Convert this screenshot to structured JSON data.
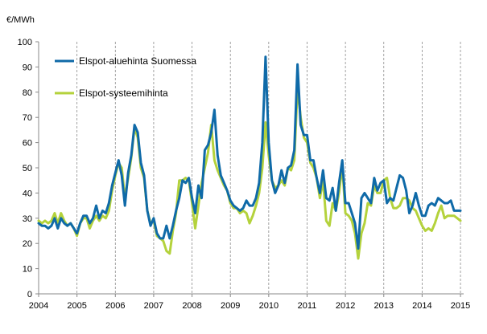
{
  "chart_data": {
    "type": "line",
    "title": "",
    "ylabel": "€/MWh",
    "xlabel": "",
    "ylim": [
      0,
      100
    ],
    "yticks": [
      0,
      10,
      20,
      30,
      40,
      50,
      60,
      70,
      80,
      90,
      100
    ],
    "xlim": [
      2004,
      2015.083
    ],
    "xticks": [
      2004,
      2005,
      2006,
      2007,
      2008,
      2009,
      2010,
      2011,
      2012,
      2013,
      2014,
      2015
    ],
    "xtick_labels": [
      "2004",
      "2005",
      "2006",
      "2007",
      "2008",
      "2009",
      "2010",
      "2011",
      "2012",
      "2013",
      "2014",
      "2015"
    ],
    "grid": "vertical dashed lines at year boundaries",
    "legend_position": "top-left",
    "series": [
      {
        "name": "Elspot-aluehinta Suomessa",
        "color": "#0f6aa8",
        "values": [
          28,
          27,
          27,
          26,
          27,
          30,
          26,
          30,
          28,
          27,
          28,
          26,
          24,
          28,
          31,
          31,
          28,
          30,
          35,
          30,
          33,
          32,
          36,
          43,
          48,
          53,
          47,
          35,
          48,
          55,
          67,
          64,
          52,
          47,
          33,
          27,
          30,
          24,
          22,
          22,
          27,
          22,
          27,
          33,
          38,
          45,
          44,
          46,
          38,
          32,
          43,
          38,
          57,
          59,
          64,
          73,
          55,
          47,
          44,
          41,
          37,
          35,
          34,
          33,
          34,
          37,
          35,
          35,
          38,
          44,
          60,
          94,
          60,
          45,
          40,
          43,
          49,
          44,
          50,
          51,
          57,
          91,
          67,
          63,
          63,
          53,
          53,
          46,
          40,
          49,
          38,
          37,
          42,
          33,
          44,
          53,
          36,
          36,
          32,
          28,
          18,
          38,
          40,
          38,
          36,
          46,
          41,
          44,
          45,
          36,
          38,
          37,
          42,
          47,
          46,
          41,
          32,
          35,
          40,
          35,
          31,
          31,
          35,
          36,
          35,
          38,
          37,
          36,
          36,
          37,
          33,
          33,
          33
        ],
        "values_note": "monthly values, Jan 2004 – Jan 2015"
      },
      {
        "name": "Elspot-systeemihinta",
        "color": "#b4d23c",
        "values": [
          29,
          28,
          29,
          28,
          29,
          32,
          28,
          32,
          29,
          27,
          28,
          26,
          23,
          28,
          30,
          30,
          26,
          29,
          31,
          29,
          31,
          30,
          33,
          41,
          47,
          52,
          50,
          38,
          46,
          54,
          66,
          62,
          50,
          46,
          33,
          28,
          29,
          23,
          22,
          21,
          17,
          16,
          25,
          32,
          45,
          45,
          46,
          45,
          36,
          26,
          35,
          44,
          50,
          56,
          67,
          53,
          49,
          46,
          43,
          41,
          36,
          34,
          34,
          32,
          33,
          32,
          28,
          31,
          35,
          40,
          50,
          68,
          55,
          45,
          42,
          43,
          45,
          43,
          50,
          49,
          53,
          82,
          70,
          62,
          60,
          52,
          50,
          46,
          38,
          45,
          29,
          27,
          36,
          33,
          40,
          51,
          32,
          31,
          29,
          24,
          14,
          24,
          28,
          36,
          35,
          43,
          40,
          40,
          45,
          46,
          38,
          34,
          34,
          35,
          38,
          38,
          37,
          34,
          33,
          30,
          27,
          25,
          26,
          25,
          28,
          32,
          35,
          30,
          31,
          31,
          31,
          30,
          29
        ],
        "values_note": "monthly values, Jan 2004 – Jan 2015"
      }
    ]
  }
}
